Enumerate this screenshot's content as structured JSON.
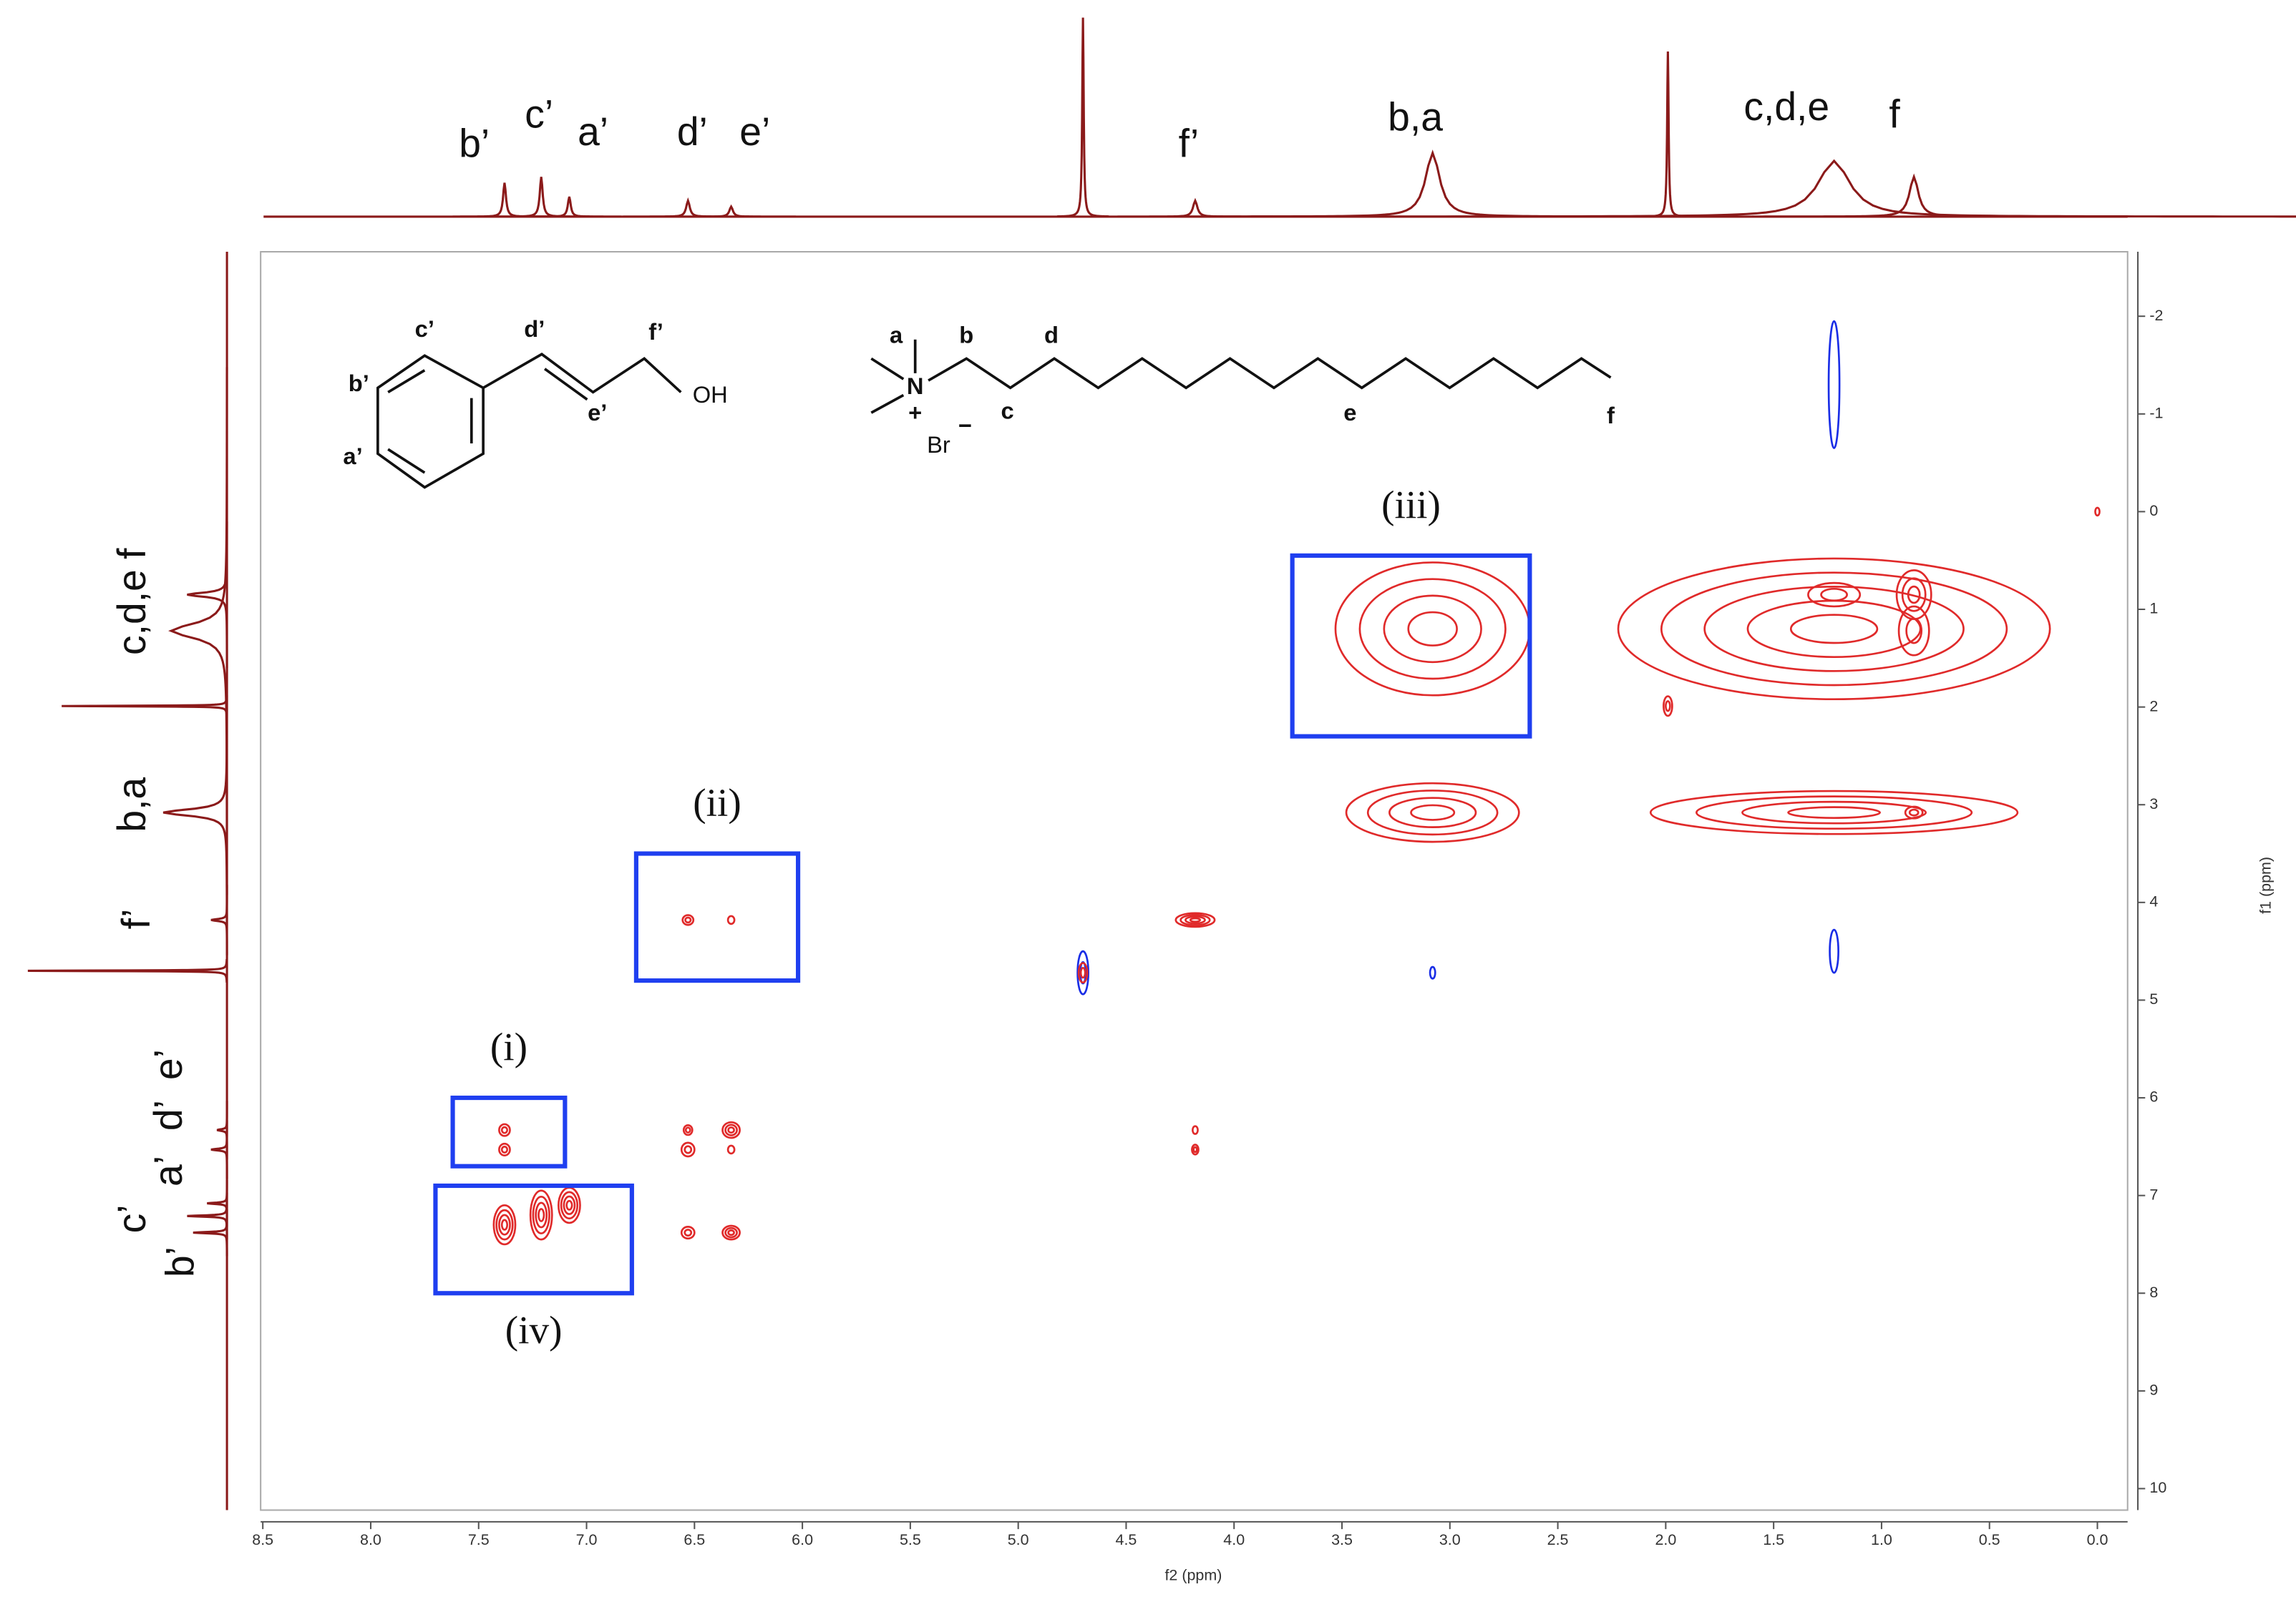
{
  "chart_data": {
    "type": "nmr2d",
    "xlabel": "f2 (ppm)",
    "ylabel": "f1 (ppm)",
    "xlim": [
      8.51,
      -0.14
    ],
    "ylim": [
      -2.66,
      10.22
    ],
    "xticks": [
      {
        "value": 8.5,
        "label": "8.5"
      },
      {
        "value": 8,
        "label": "8.0"
      },
      {
        "value": 7.5,
        "label": "7.5"
      },
      {
        "value": 7,
        "label": "7.0"
      },
      {
        "value": 6.5,
        "label": "6.5"
      },
      {
        "value": 6,
        "label": "6.0"
      },
      {
        "value": 5.5,
        "label": "5.5"
      },
      {
        "value": 5,
        "label": "5.0"
      },
      {
        "value": 4.5,
        "label": "4.5"
      },
      {
        "value": 4,
        "label": "4.0"
      },
      {
        "value": 3.5,
        "label": "3.5"
      },
      {
        "value": 3,
        "label": "3.0"
      },
      {
        "value": 2.5,
        "label": "2.5"
      },
      {
        "value": 2,
        "label": "2.0"
      },
      {
        "value": 1.5,
        "label": "1.5"
      },
      {
        "value": 1,
        "label": "1.0"
      },
      {
        "value": 0.5,
        "label": "0.5"
      },
      {
        "value": 0,
        "label": "0.0"
      }
    ],
    "yticks": [
      -2,
      -1,
      0,
      1,
      2,
      3,
      4,
      5,
      6,
      7,
      8,
      9,
      10
    ],
    "positive_color": "#e02a2a",
    "negative_color": "#1a2ee6",
    "spectrum_color": "#8b1a1a",
    "region_color": "#1f3ff0",
    "spectrum": [
      {
        "x": 7.38,
        "height": 17,
        "width": 0.008
      },
      {
        "x": 7.21,
        "height": 20,
        "width": 0.008
      },
      {
        "x": 7.08,
        "height": 10,
        "width": 0.008
      },
      {
        "x": 6.53,
        "height": 8,
        "width": 0.01
      },
      {
        "x": 6.33,
        "height": 5,
        "width": 0.01
      },
      {
        "x": 4.7,
        "height": 100,
        "width": 0.004
      },
      {
        "x": 4.18,
        "height": 8,
        "width": 0.012
      },
      {
        "x": 3.08,
        "height": 32,
        "width": 0.04
      },
      {
        "x": 1.99,
        "height": 83,
        "width": 0.004
      },
      {
        "x": 1.22,
        "height": 28,
        "width": 0.09
      },
      {
        "x": 0.85,
        "height": 20,
        "width": 0.025
      }
    ],
    "top_labels": [
      {
        "text": "b’",
        "x": 7.52
      },
      {
        "text": "c’",
        "x": 7.22
      },
      {
        "text": "a’",
        "x": 6.97
      },
      {
        "text": "d’",
        "x": 6.51
      },
      {
        "text": "e’",
        "x": 6.22
      },
      {
        "text": "f’",
        "x": 4.21
      },
      {
        "text": "b,a",
        "x": 3.16
      },
      {
        "text": "c,d,e",
        "x": 1.44
      },
      {
        "text": "f",
        "x": 0.94
      }
    ],
    "left_labels": [
      {
        "text": "f",
        "y": 0.43
      },
      {
        "text": "c,d,e",
        "y": 1.03
      },
      {
        "text": "b,a",
        "y": 3.0
      },
      {
        "text": "f’",
        "y": 4.17
      },
      {
        "text": "e’",
        "y": 5.66
      },
      {
        "text": "d’",
        "y": 6.18
      },
      {
        "text": "a’",
        "y": 6.75
      },
      {
        "text": "c’",
        "y": 7.24
      },
      {
        "text": "b’",
        "y": 7.68
      }
    ],
    "peaks": [
      {
        "x": 1.22,
        "y": -1.3,
        "wx": 0.025,
        "wy": 0.65,
        "levels": 1,
        "sign": "negative"
      },
      {
        "x": 0.0,
        "y": 0.0,
        "wx": 0.01,
        "wy": 0.04,
        "levels": 1,
        "sign": "positive"
      },
      {
        "x": 1.22,
        "y": 1.2,
        "wx": 1.0,
        "wy": 0.72,
        "levels": 5,
        "sign": "positive"
      },
      {
        "x": 0.85,
        "y": 0.85,
        "wx": 0.08,
        "wy": 0.25,
        "levels": 3,
        "sign": "positive"
      },
      {
        "x": 1.22,
        "y": 0.85,
        "wx": 0.12,
        "wy": 0.12,
        "levels": 2,
        "sign": "positive"
      },
      {
        "x": 0.85,
        "y": 1.22,
        "wx": 0.07,
        "wy": 0.25,
        "levels": 2,
        "sign": "positive"
      },
      {
        "x": 3.08,
        "y": 1.2,
        "wx": 0.45,
        "wy": 0.68,
        "levels": 4,
        "sign": "positive"
      },
      {
        "x": 1.99,
        "y": 1.99,
        "wx": 0.02,
        "wy": 0.1,
        "levels": 2,
        "sign": "positive"
      },
      {
        "x": 3.08,
        "y": 3.08,
        "wx": 0.4,
        "wy": 0.3,
        "levels": 4,
        "sign": "positive"
      },
      {
        "x": 1.22,
        "y": 3.08,
        "wx": 0.85,
        "wy": 0.22,
        "levels": 4,
        "sign": "positive"
      },
      {
        "x": 0.85,
        "y": 3.08,
        "wx": 0.04,
        "wy": 0.06,
        "levels": 2,
        "sign": "positive"
      },
      {
        "x": 4.18,
        "y": 4.18,
        "wx": 0.09,
        "wy": 0.07,
        "levels": 4,
        "sign": "positive"
      },
      {
        "x": 6.53,
        "y": 4.18,
        "wx": 0.025,
        "wy": 0.05,
        "levels": 2,
        "sign": "positive"
      },
      {
        "x": 6.33,
        "y": 4.18,
        "wx": 0.015,
        "wy": 0.04,
        "levels": 1,
        "sign": "positive"
      },
      {
        "x": 4.7,
        "y": 4.72,
        "wx": 0.025,
        "wy": 0.22,
        "levels": 2,
        "sign": "negative"
      },
      {
        "x": 4.7,
        "y": 4.72,
        "wx": 0.02,
        "wy": 0.1,
        "levels": 2,
        "sign": "positive"
      },
      {
        "x": 3.08,
        "y": 4.72,
        "wx": 0.012,
        "wy": 0.06,
        "levels": 1,
        "sign": "negative"
      },
      {
        "x": 1.22,
        "y": 4.5,
        "wx": 0.02,
        "wy": 0.22,
        "levels": 1,
        "sign": "negative"
      },
      {
        "x": 7.38,
        "y": 6.33,
        "wx": 0.025,
        "wy": 0.06,
        "levels": 2,
        "sign": "positive"
      },
      {
        "x": 7.38,
        "y": 6.53,
        "wx": 0.025,
        "wy": 0.06,
        "levels": 2,
        "sign": "positive"
      },
      {
        "x": 6.53,
        "y": 6.33,
        "wx": 0.02,
        "wy": 0.05,
        "levels": 2,
        "sign": "positive"
      },
      {
        "x": 6.53,
        "y": 6.53,
        "wx": 0.03,
        "wy": 0.07,
        "levels": 2,
        "sign": "positive"
      },
      {
        "x": 6.33,
        "y": 6.33,
        "wx": 0.04,
        "wy": 0.08,
        "levels": 3,
        "sign": "positive"
      },
      {
        "x": 6.33,
        "y": 6.53,
        "wx": 0.015,
        "wy": 0.04,
        "levels": 1,
        "sign": "positive"
      },
      {
        "x": 4.18,
        "y": 6.33,
        "wx": 0.012,
        "wy": 0.04,
        "levels": 1,
        "sign": "positive"
      },
      {
        "x": 4.18,
        "y": 6.53,
        "wx": 0.015,
        "wy": 0.05,
        "levels": 2,
        "sign": "positive"
      },
      {
        "x": 7.38,
        "y": 7.3,
        "wx": 0.05,
        "wy": 0.2,
        "levels": 4,
        "sign": "positive"
      },
      {
        "x": 7.21,
        "y": 7.2,
        "wx": 0.05,
        "wy": 0.25,
        "levels": 4,
        "sign": "positive"
      },
      {
        "x": 7.08,
        "y": 7.1,
        "wx": 0.05,
        "wy": 0.18,
        "levels": 4,
        "sign": "positive"
      },
      {
        "x": 6.53,
        "y": 7.38,
        "wx": 0.03,
        "wy": 0.06,
        "levels": 2,
        "sign": "positive"
      },
      {
        "x": 6.33,
        "y": 7.38,
        "wx": 0.04,
        "wy": 0.07,
        "levels": 3,
        "sign": "positive"
      }
    ],
    "regions": [
      {
        "label": "(i)",
        "x": [
          7.62,
          7.1
        ],
        "y": [
          6.0,
          6.7
        ]
      },
      {
        "label": "(ii)",
        "x": [
          6.77,
          6.02
        ],
        "y": [
          3.5,
          4.8
        ]
      },
      {
        "label": "(iii)",
        "x": [
          3.73,
          2.63
        ],
        "y": [
          0.45,
          2.3
        ]
      },
      {
        "label": "(iv)",
        "x": [
          7.7,
          6.79
        ],
        "y": [
          6.9,
          8.0
        ]
      }
    ],
    "structure_labels": [
      "c’",
      "d’",
      "f’",
      "b’",
      "e’",
      "a’",
      "OH",
      "a",
      "b",
      "d",
      "N",
      "+",
      "Br",
      "−",
      "c",
      "e",
      "f"
    ]
  }
}
